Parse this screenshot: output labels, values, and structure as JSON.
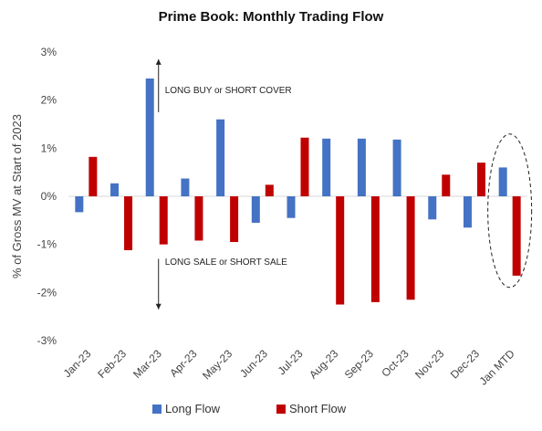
{
  "chart_data": {
    "type": "bar",
    "title": "Prime Book: Monthly Trading Flow",
    "xlabel": "",
    "ylabel": "% of Gross MV at Start of 2023",
    "categories": [
      "Jan-23",
      "Feb-23",
      "Mar-23",
      "Apr-23",
      "May-23",
      "Jun-23",
      "Jul-23",
      "Aug-23",
      "Sep-23",
      "Oct-23",
      "Nov-23",
      "Dec-23",
      "Jan MTD"
    ],
    "series": [
      {
        "name": "Long Flow",
        "color": "#4472C4",
        "values": [
          -0.33,
          0.27,
          2.45,
          0.37,
          1.6,
          -0.55,
          -0.45,
          1.2,
          1.2,
          1.18,
          -0.48,
          -0.65,
          0.6
        ]
      },
      {
        "name": "Short Flow",
        "color": "#C00000",
        "values": [
          0.82,
          -1.12,
          -1.0,
          -0.92,
          -0.95,
          0.24,
          1.22,
          -2.25,
          -2.2,
          -2.15,
          0.45,
          0.7,
          -1.65
        ]
      }
    ],
    "ylim": [
      -3,
      3
    ],
    "yticks": [
      -3,
      -2,
      -1,
      0,
      1,
      2,
      3
    ],
    "ytick_labels": [
      "-3%",
      "-2%",
      "-1%",
      "0%",
      "1%",
      "2%",
      "3%"
    ],
    "grid": false,
    "legend_position": "bottom",
    "annotations": {
      "upper": "LONG BUY or SHORT COVER",
      "lower": "LONG SALE or SHORT SALE",
      "highlight": "Jan MTD"
    }
  }
}
